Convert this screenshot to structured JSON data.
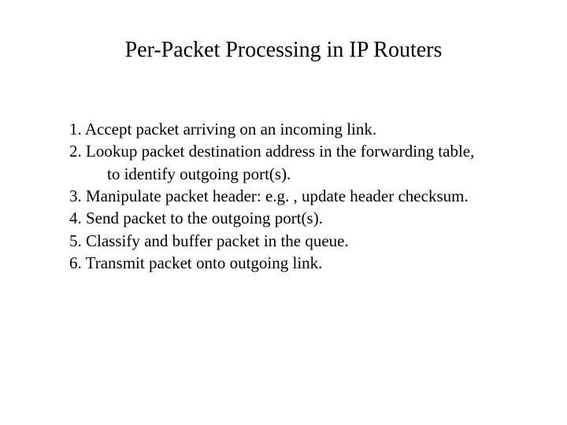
{
  "title": "Per-Packet Processing in IP Routers",
  "items": {
    "i1": "1. Accept packet arriving on an incoming link.",
    "i2a": "2. Lookup packet destination address in the forwarding table,",
    "i2b": "to identify outgoing port(s).",
    "i3": "3. Manipulate packet header: e.g. , update header checksum.",
    "i4": "4. Send packet to the outgoing port(s).",
    "i5": "5. Classify and buffer packet in the queue.",
    "i6": "6. Transmit packet onto outgoing link."
  },
  "style": {
    "background_color": "#ffffff",
    "text_color": "#000000",
    "title_fontsize": 28,
    "body_fontsize": 21,
    "font_family": "Times New Roman"
  }
}
